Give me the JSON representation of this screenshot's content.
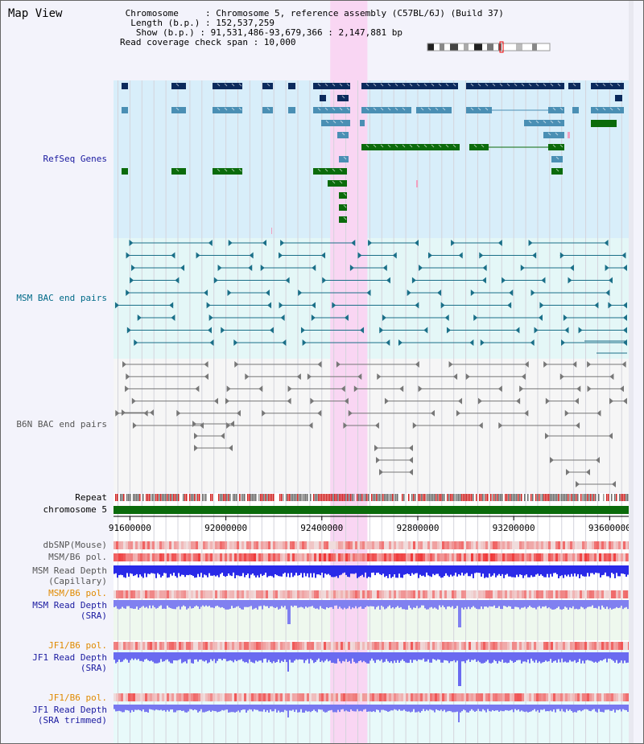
{
  "header": {
    "title": "Map View",
    "info_lines": [
      " Chromosome     : Chromosome 5, reference assembly (C57BL/6J) (Build 37)",
      "  Length (b.p.) : 152,537,259",
      "   Show (b.p.) : 91,531,486-93,679,366 : 2,147,881 bp",
      "Read coverage check span : 10,000"
    ]
  },
  "tracks": {
    "refseq": {
      "label": "RefSeq Genes"
    },
    "msm_bac": {
      "label": "MSM BAC end pairs"
    },
    "b6n_bac": {
      "label": "B6N BAC end pairs"
    },
    "repeat": {
      "label": "Repeat"
    },
    "chromosome": {
      "label": "chromosome 5"
    },
    "dbsnp": {
      "label": "dbSNP(Mouse)"
    },
    "msm_b6_pol_1": {
      "label": "MSM/B6 pol."
    },
    "msm_depth_cap": {
      "label1": "MSM Read Depth",
      "label2": "(Capillary)"
    },
    "msm_b6_pol_2": {
      "label": "MSM/B6 pol."
    },
    "msm_depth_sra": {
      "label1": "MSM Read Depth",
      "label2": "(SRA)"
    },
    "jf1_b6_pol_1": {
      "label": "JF1/B6 pol."
    },
    "jf1_depth_sra": {
      "label1": "JF1 Read Depth",
      "label2": "(SRA)"
    },
    "jf1_b6_pol_2": {
      "label": "JF1/B6 pol."
    },
    "jf1_depth_trim": {
      "label1": "JF1 Read Depth",
      "label2": "(SRA trimmed)"
    }
  },
  "axis": {
    "ticks": [
      "91600000",
      "92000000",
      "92400000",
      "92800000",
      "93200000",
      "93600000"
    ],
    "tick_values": [
      91600000,
      92000000,
      92400000,
      92800000,
      93200000,
      93600000
    ],
    "start": 91531486,
    "end": 93679366
  },
  "highlight_range": [
    92435000,
    92590000
  ],
  "colors": {
    "refseq_bg": "#d8eefa",
    "msm_bg": "#e4f7f7",
    "b6n_bg": "#f6f6f6",
    "highlight": "#f9d6f3",
    "navy": "#0b2a5c",
    "steel": "#4a8fb4",
    "green": "#0b6b0b",
    "teal": "#1a6f88",
    "gray": "#777777",
    "red_strip": "#f06a6a",
    "blue_depth": "#2a2ae8",
    "label_blue": "#1a1aa0",
    "label_orange": "#e08a00",
    "label_teal": "#006a88"
  }
}
